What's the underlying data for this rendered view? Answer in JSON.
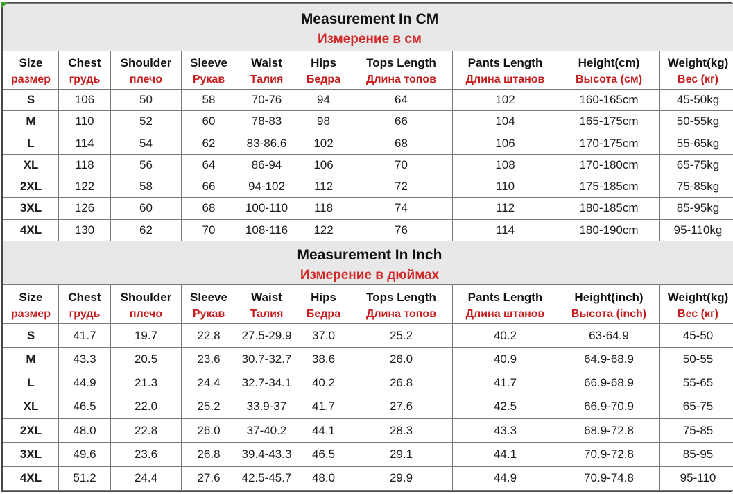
{
  "colors": {
    "title_red": "#d02a2a",
    "header_red": "#c51d1d",
    "band_background": "#e8e8e8",
    "outer_border": "#484848",
    "inner_border": "#777777",
    "corner_marker_green": "#3f9a35"
  },
  "sections": [
    {
      "id": "cm",
      "title_en": "Measurement In CM",
      "title_ru": "Измерение в см",
      "headers": [
        {
          "en": "Size",
          "ru": "размер"
        },
        {
          "en": "Chest",
          "ru": "грудь"
        },
        {
          "en": "Shoulder",
          "ru": "плечо"
        },
        {
          "en": "Sleeve",
          "ru": "Рукав"
        },
        {
          "en": "Waist",
          "ru": "Талия"
        },
        {
          "en": "Hips",
          "ru": "Бедра"
        },
        {
          "en": "Tops Length",
          "ru": "Длина топов"
        },
        {
          "en": "Pants Length",
          "ru": "Длина штанов"
        },
        {
          "en": "Height(cm)",
          "ru": "Высота (см)"
        },
        {
          "en": "Weight(kg)",
          "ru": "Вес (кг)"
        }
      ],
      "rows": [
        [
          "S",
          "106",
          "50",
          "58",
          "70-76",
          "94",
          "64",
          "102",
          "160-165cm",
          "45-50kg"
        ],
        [
          "M",
          "110",
          "52",
          "60",
          "78-83",
          "98",
          "66",
          "104",
          "165-175cm",
          "50-55kg"
        ],
        [
          "L",
          "114",
          "54",
          "62",
          "83-86.6",
          "102",
          "68",
          "106",
          "170-175cm",
          "55-65kg"
        ],
        [
          "XL",
          "118",
          "56",
          "64",
          "86-94",
          "106",
          "70",
          "108",
          "170-180cm",
          "65-75kg"
        ],
        [
          "2XL",
          "122",
          "58",
          "66",
          "94-102",
          "112",
          "72",
          "110",
          "175-185cm",
          "75-85kg"
        ],
        [
          "3XL",
          "126",
          "60",
          "68",
          "100-110",
          "118",
          "74",
          "112",
          "180-185cm",
          "85-95kg"
        ],
        [
          "4XL",
          "130",
          "62",
          "70",
          "108-116",
          "122",
          "76",
          "114",
          "180-190cm",
          "95-110kg"
        ]
      ]
    },
    {
      "id": "inch",
      "title_en": "Measurement In Inch",
      "title_ru": "Измерение в дюймах",
      "headers": [
        {
          "en": "Size",
          "ru": "размер"
        },
        {
          "en": "Chest",
          "ru": "грудь"
        },
        {
          "en": "Shoulder",
          "ru": "плечо"
        },
        {
          "en": "Sleeve",
          "ru": "Рукав"
        },
        {
          "en": "Waist",
          "ru": "Талия"
        },
        {
          "en": "Hips",
          "ru": "Бедра"
        },
        {
          "en": "Tops Length",
          "ru": "Длина топов"
        },
        {
          "en": "Pants Length",
          "ru": "Длина штанов"
        },
        {
          "en": "Height(inch)",
          "ru": "Высота (inch)"
        },
        {
          "en": "Weight(kg)",
          "ru": "Вес (кг)"
        }
      ],
      "rows": [
        [
          "S",
          "41.7",
          "19.7",
          "22.8",
          "27.5-29.9",
          "37.0",
          "25.2",
          "40.2",
          "63-64.9",
          "45-50"
        ],
        [
          "M",
          "43.3",
          "20.5",
          "23.6",
          "30.7-32.7",
          "38.6",
          "26.0",
          "40.9",
          "64.9-68.9",
          "50-55"
        ],
        [
          "L",
          "44.9",
          "21.3",
          "24.4",
          "32.7-34.1",
          "40.2",
          "26.8",
          "41.7",
          "66.9-68.9",
          "55-65"
        ],
        [
          "XL",
          "46.5",
          "22.0",
          "25.2",
          "33.9-37",
          "41.7",
          "27.6",
          "42.5",
          "66.9-70.9",
          "65-75"
        ],
        [
          "2XL",
          "48.0",
          "22.8",
          "26.0",
          "37-40.2",
          "44.1",
          "28.3",
          "43.3",
          "68.9-72.8",
          "75-85"
        ],
        [
          "3XL",
          "49.6",
          "23.6",
          "26.8",
          "39.4-43.3",
          "46.5",
          "29.1",
          "44.1",
          "70.9-72.8",
          "85-95"
        ],
        [
          "4XL",
          "51.2",
          "24.4",
          "27.6",
          "42.5-45.7",
          "48.0",
          "29.9",
          "44.9",
          "70.9-74.8",
          "95-110"
        ]
      ]
    }
  ]
}
